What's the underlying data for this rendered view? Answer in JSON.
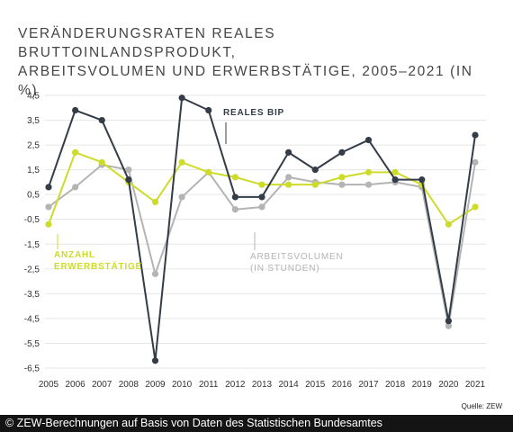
{
  "title_lines": [
    "VERÄNDERUNGSRATEN REALES BRUTTOINLANDSPRODUKT,",
    "ARBEITSVOLUMEN UND ERWERBSTÄTIGE, 2005–2021 (IN %)"
  ],
  "source": "Quelle: ZEW",
  "credit": "© ZEW-Berechnungen auf Basis von Daten des Statistischen Bundesamtes",
  "chart_data": {
    "type": "line",
    "title": "VERÄNDERUNGSRATEN REALES BRUTTOINLANDSPRODUKT, ARBEITSVOLUMEN UND ERWERBSTÄTIGE, 2005–2021 (IN %)",
    "x": [
      2005,
      2006,
      2007,
      2008,
      2009,
      2010,
      2011,
      2012,
      2013,
      2014,
      2015,
      2016,
      2017,
      2018,
      2019,
      2020,
      2021
    ],
    "y_ticks": [
      "4,5",
      "3,5",
      "2,5",
      "1,5",
      "0,5",
      "-0,5",
      "-1,5",
      "-2,5",
      "-3,5",
      "-4,5",
      "-5,5",
      "-6,5"
    ],
    "y_tick_values": [
      4.5,
      3.5,
      2.5,
      1.5,
      0.5,
      -0.5,
      -1.5,
      -2.5,
      -3.5,
      -4.5,
      -5.5,
      -6.5
    ],
    "ylim": [
      -6.5,
      4.5
    ],
    "grid": "horizontal",
    "series": [
      {
        "name": "ARBEITSVOLUMEN (IN STUNDEN)",
        "label_lines": [
          "ARBEITSVOLUMEN",
          "(IN STUNDEN)"
        ],
        "color": "#b4b4b4",
        "values": [
          0.0,
          0.8,
          1.7,
          1.5,
          -2.7,
          0.4,
          1.4,
          -0.1,
          0.0,
          1.2,
          1.0,
          0.9,
          0.9,
          1.0,
          0.8,
          -4.8,
          1.8
        ]
      },
      {
        "name": "ANZAHL ERWERBSTÄTIGE",
        "label_lines": [
          "ANZAHL",
          "ERWERBSTÄTIGE"
        ],
        "color": "#cddc2b",
        "values": [
          -0.7,
          2.2,
          1.8,
          1.0,
          0.2,
          1.8,
          1.4,
          1.2,
          0.9,
          0.9,
          0.9,
          1.2,
          1.4,
          1.4,
          0.9,
          -0.7,
          0.0
        ]
      },
      {
        "name": "REALES BIP",
        "label_lines": [
          "REALES BIP"
        ],
        "color": "#333c47",
        "values": [
          0.8,
          3.9,
          3.5,
          1.1,
          -6.2,
          4.4,
          3.9,
          0.4,
          0.4,
          2.2,
          1.5,
          2.2,
          2.7,
          1.1,
          1.1,
          -4.6,
          2.9
        ]
      }
    ]
  }
}
